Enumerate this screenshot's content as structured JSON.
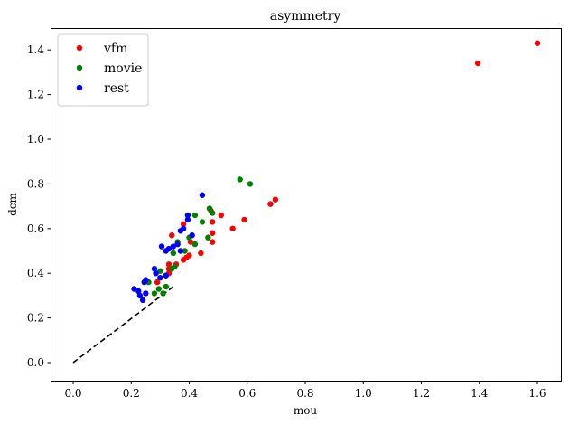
{
  "chart_data": {
    "type": "scatter",
    "title": "asymmetry",
    "xlabel": "mou",
    "ylabel": "dcm",
    "xlim": [
      -0.08,
      1.68
    ],
    "ylim": [
      -0.07,
      1.5
    ],
    "xticks": [
      0.0,
      0.2,
      0.4,
      0.6,
      0.8,
      1.0,
      1.2,
      1.4,
      1.6
    ],
    "xtick_labels": [
      "0.0",
      "0.2",
      "0.4",
      "0.6",
      "0.8",
      "1.0",
      "1.2",
      "1.4",
      "1.6"
    ],
    "yticks": [
      0.0,
      0.2,
      0.4,
      0.6,
      0.8,
      1.0,
      1.2,
      1.4
    ],
    "ytick_labels": [
      "0.0",
      "0.2",
      "0.4",
      "0.6",
      "0.8",
      "1.0",
      "1.2",
      "1.4"
    ],
    "grid": false,
    "legend_position": "upper left",
    "reference_line": {
      "style": "dashed",
      "color": "#000000",
      "x": [
        0.0,
        0.345
      ],
      "y": [
        0.0,
        0.34
      ]
    },
    "series": [
      {
        "name": "vfm",
        "color": "#ff0000",
        "points": [
          [
            1.6,
            1.43
          ],
          [
            1.395,
            1.34
          ],
          [
            0.697,
            0.73
          ],
          [
            0.68,
            0.71
          ],
          [
            0.59,
            0.64
          ],
          [
            0.55,
            0.6
          ],
          [
            0.51,
            0.66
          ],
          [
            0.48,
            0.58
          ],
          [
            0.48,
            0.54
          ],
          [
            0.48,
            0.63
          ],
          [
            0.475,
            0.68
          ],
          [
            0.44,
            0.49
          ],
          [
            0.4,
            0.48
          ],
          [
            0.39,
            0.47
          ],
          [
            0.38,
            0.46
          ],
          [
            0.405,
            0.54
          ],
          [
            0.38,
            0.62
          ],
          [
            0.34,
            0.57
          ],
          [
            0.355,
            0.44
          ],
          [
            0.33,
            0.44
          ],
          [
            0.33,
            0.42
          ],
          [
            0.33,
            0.4
          ],
          [
            0.29,
            0.36
          ]
        ]
      },
      {
        "name": "movie",
        "color": "#008000",
        "points": [
          [
            0.575,
            0.82
          ],
          [
            0.61,
            0.8
          ],
          [
            0.48,
            0.67
          ],
          [
            0.47,
            0.69
          ],
          [
            0.445,
            0.63
          ],
          [
            0.42,
            0.66
          ],
          [
            0.42,
            0.53
          ],
          [
            0.4,
            0.56
          ],
          [
            0.385,
            0.5
          ],
          [
            0.465,
            0.56
          ],
          [
            0.36,
            0.54
          ],
          [
            0.35,
            0.43
          ],
          [
            0.345,
            0.49
          ],
          [
            0.34,
            0.42
          ],
          [
            0.32,
            0.34
          ],
          [
            0.31,
            0.31
          ],
          [
            0.3,
            0.41
          ],
          [
            0.295,
            0.33
          ],
          [
            0.28,
            0.31
          ],
          [
            0.26,
            0.36
          ],
          [
            0.32,
            0.39
          ]
        ]
      },
      {
        "name": "rest",
        "color": "#0000ff",
        "points": [
          [
            0.445,
            0.75
          ],
          [
            0.395,
            0.66
          ],
          [
            0.395,
            0.64
          ],
          [
            0.38,
            0.6
          ],
          [
            0.37,
            0.59
          ],
          [
            0.41,
            0.57
          ],
          [
            0.36,
            0.53
          ],
          [
            0.37,
            0.5
          ],
          [
            0.345,
            0.52
          ],
          [
            0.33,
            0.51
          ],
          [
            0.32,
            0.5
          ],
          [
            0.305,
            0.52
          ],
          [
            0.32,
            0.39
          ],
          [
            0.28,
            0.42
          ],
          [
            0.3,
            0.38
          ],
          [
            0.245,
            0.36
          ],
          [
            0.25,
            0.37
          ],
          [
            0.225,
            0.32
          ],
          [
            0.21,
            0.33
          ],
          [
            0.23,
            0.3
          ],
          [
            0.25,
            0.31
          ],
          [
            0.24,
            0.28
          ],
          [
            0.285,
            0.4
          ]
        ]
      }
    ]
  }
}
